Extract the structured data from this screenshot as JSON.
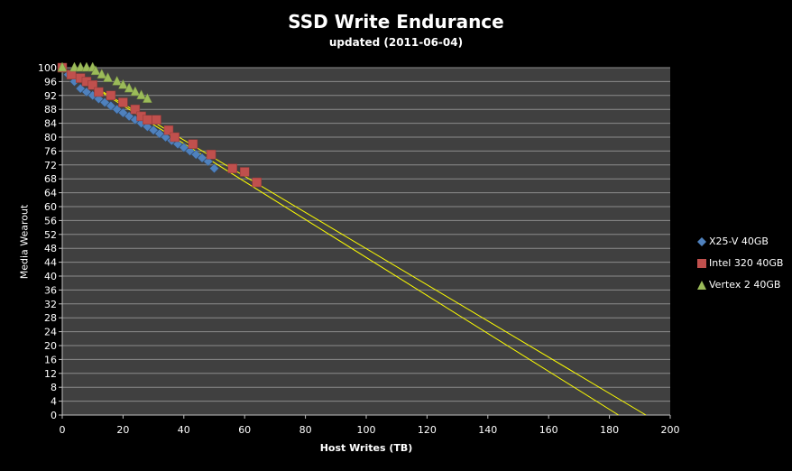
{
  "chart_data": {
    "type": "scatter",
    "title": "SSD Write Endurance",
    "subtitle": "updated (2011-06-04)",
    "xlabel": "Host Writes (TB)",
    "ylabel": "Media Wearout",
    "xlim": [
      0,
      200
    ],
    "ylim": [
      0,
      100
    ],
    "x_ticks": [
      "0",
      "20",
      "40",
      "60",
      "80",
      "100",
      "120",
      "140",
      "160",
      "180",
      "200"
    ],
    "y_ticks": [
      "0",
      "4",
      "8",
      "12",
      "16",
      "20",
      "24",
      "28",
      "32",
      "36",
      "40",
      "44",
      "48",
      "52",
      "56",
      "60",
      "64",
      "68",
      "72",
      "76",
      "80",
      "84",
      "88",
      "92",
      "96",
      "100"
    ],
    "grid": true,
    "legend_position": "right",
    "series": [
      {
        "name": "X25-V 40GB",
        "marker": "diamond",
        "color": "#4f81bd",
        "points": [
          [
            0,
            100
          ],
          [
            2,
            98
          ],
          [
            4,
            96
          ],
          [
            6,
            94
          ],
          [
            8,
            93
          ],
          [
            10,
            92
          ],
          [
            12,
            91
          ],
          [
            14,
            90
          ],
          [
            16,
            89
          ],
          [
            18,
            88
          ],
          [
            20,
            87
          ],
          [
            22,
            86
          ],
          [
            24,
            85
          ],
          [
            26,
            84
          ],
          [
            28,
            83
          ],
          [
            30,
            82
          ],
          [
            32,
            81
          ],
          [
            34,
            80
          ],
          [
            36,
            79
          ],
          [
            38,
            78
          ],
          [
            40,
            77
          ],
          [
            42,
            76
          ],
          [
            44,
            75
          ],
          [
            46,
            74
          ],
          [
            48,
            73
          ],
          [
            50,
            71
          ]
        ]
      },
      {
        "name": "Intel 320 40GB",
        "marker": "square",
        "color": "#c0504d",
        "points": [
          [
            0,
            100
          ],
          [
            3,
            98
          ],
          [
            6,
            97
          ],
          [
            8,
            96
          ],
          [
            10,
            95
          ],
          [
            12,
            93
          ],
          [
            16,
            92
          ],
          [
            20,
            90
          ],
          [
            24,
            88
          ],
          [
            26,
            86
          ],
          [
            28,
            85
          ],
          [
            31,
            85
          ],
          [
            35,
            82
          ],
          [
            37,
            80
          ],
          [
            43,
            78
          ],
          [
            49,
            75
          ],
          [
            56,
            71
          ],
          [
            60,
            70
          ],
          [
            64,
            67
          ]
        ]
      },
      {
        "name": "Vertex 2 40GB",
        "marker": "triangle",
        "color": "#9bbb59",
        "points": [
          [
            0,
            100
          ],
          [
            4,
            100
          ],
          [
            6,
            100
          ],
          [
            8,
            100
          ],
          [
            10,
            100
          ],
          [
            11,
            99
          ],
          [
            13,
            98
          ],
          [
            15,
            97
          ],
          [
            18,
            96
          ],
          [
            20,
            95
          ],
          [
            22,
            94
          ],
          [
            24,
            93
          ],
          [
            26,
            92
          ],
          [
            28,
            91
          ]
        ]
      }
    ],
    "trendlines": [
      {
        "color": "#ffff00",
        "points": [
          [
            0,
            100
          ],
          [
            183,
            0
          ]
        ]
      },
      {
        "color": "#ffff00",
        "points": [
          [
            0,
            100
          ],
          [
            192,
            0
          ]
        ]
      }
    ]
  }
}
